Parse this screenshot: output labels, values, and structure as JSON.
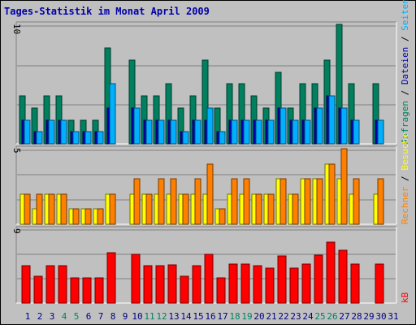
{
  "title": "Tages-Statistik im Monat April 2009",
  "colors": {
    "anfragen": "#00805f",
    "dateien": "#0000b0",
    "seiten": "#00b0ff",
    "besuche": "#ffff00",
    "rechner": "#ff8000",
    "kb": "#ff0000",
    "weekday_label": "#000080",
    "weekend_label": "#00805f"
  },
  "chart_data": [
    {
      "type": "bar",
      "panel": "top",
      "ylim": [
        0,
        10
      ],
      "ytick_label": "10",
      "grid": true,
      "legend": {
        "placement": "right-vertical",
        "labels": [
          "Anfragen",
          "Dateien",
          "Seiten"
        ],
        "separator": "/"
      },
      "categories": [
        "1",
        "2",
        "3",
        "4",
        "5",
        "6",
        "7",
        "8",
        "9",
        "10",
        "11",
        "12",
        "13",
        "14",
        "15",
        "16",
        "17",
        "18",
        "19",
        "20",
        "21",
        "22",
        "23",
        "24",
        "25",
        "26",
        "27",
        "28",
        "29",
        "30",
        "31"
      ],
      "weekend_days": [
        "4",
        "5",
        "11",
        "12",
        "18",
        "19",
        "25",
        "26"
      ],
      "series": [
        {
          "name": "Anfragen",
          "values": [
            4,
            3,
            4,
            4,
            2,
            2,
            2,
            8,
            0,
            7,
            4,
            4,
            5,
            3,
            4,
            7,
            3,
            5,
            5,
            4,
            3,
            6,
            3,
            5,
            5,
            7,
            10,
            5,
            0,
            5,
            0
          ]
        },
        {
          "name": "Dateien",
          "values": [
            2,
            1,
            2,
            2,
            1,
            1,
            1,
            3,
            0,
            3,
            2,
            2,
            2,
            1,
            2,
            2,
            1,
            2,
            2,
            2,
            2,
            3,
            2,
            2,
            3,
            4,
            3,
            2,
            0,
            2,
            0
          ]
        },
        {
          "name": "Seiten",
          "values": [
            2,
            1,
            2,
            2,
            1,
            1,
            1,
            5,
            0,
            3,
            2,
            2,
            2,
            1,
            2,
            3,
            1,
            2,
            2,
            2,
            2,
            3,
            2,
            2,
            3,
            4,
            3,
            2,
            0,
            2,
            0
          ]
        }
      ]
    },
    {
      "type": "bar",
      "panel": "middle",
      "ylim": [
        0,
        5
      ],
      "ytick_label": "5",
      "grid": true,
      "legend": {
        "placement": "right-vertical",
        "labels": [
          "Rechner",
          "Besuche"
        ],
        "separator": "/"
      },
      "categories": [
        "1",
        "2",
        "3",
        "4",
        "5",
        "6",
        "7",
        "8",
        "9",
        "10",
        "11",
        "12",
        "13",
        "14",
        "15",
        "16",
        "17",
        "18",
        "19",
        "20",
        "21",
        "22",
        "23",
        "24",
        "25",
        "26",
        "27",
        "28",
        "29",
        "30",
        "31"
      ],
      "series": [
        {
          "name": "Besuche",
          "values": [
            2,
            1,
            2,
            2,
            1,
            1,
            1,
            2,
            0,
            2,
            2,
            2,
            2,
            2,
            2,
            2,
            1,
            2,
            2,
            2,
            2,
            3,
            2,
            3,
            3,
            4,
            3,
            2,
            0,
            2,
            0
          ]
        },
        {
          "name": "Rechner",
          "values": [
            2,
            2,
            2,
            2,
            1,
            1,
            1,
            2,
            0,
            3,
            2,
            3,
            3,
            2,
            3,
            4,
            1,
            3,
            3,
            2,
            2,
            3,
            2,
            3,
            3,
            4,
            5,
            3,
            0,
            3,
            0
          ]
        }
      ]
    },
    {
      "type": "bar",
      "panel": "bottom",
      "ylim": [
        0,
        9
      ],
      "ytick_label": "9",
      "grid": true,
      "legend": {
        "placement": "right-vertical",
        "labels": [
          "kB"
        ]
      },
      "categories": [
        "1",
        "2",
        "3",
        "4",
        "5",
        "6",
        "7",
        "8",
        "9",
        "10",
        "11",
        "12",
        "13",
        "14",
        "15",
        "16",
        "17",
        "18",
        "19",
        "20",
        "21",
        "22",
        "23",
        "24",
        "25",
        "26",
        "27",
        "28",
        "29",
        "30",
        "31"
      ],
      "series": [
        {
          "name": "kB",
          "values": [
            4.5,
            3.3,
            4.5,
            4.5,
            3.1,
            3.1,
            3.1,
            6.1,
            0,
            5.9,
            4.5,
            4.5,
            4.6,
            3.3,
            4.5,
            5.9,
            3.1,
            4.7,
            4.7,
            4.5,
            4.3,
            5.7,
            4.3,
            4.7,
            5.8,
            7.4,
            6.4,
            4.7,
            0,
            4.7,
            0
          ]
        }
      ]
    }
  ]
}
